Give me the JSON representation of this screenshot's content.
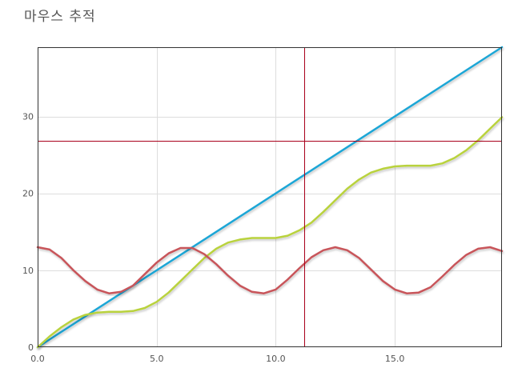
{
  "chart_data": {
    "type": "line",
    "title": "마우스 추적",
    "xlabel": "",
    "ylabel": "",
    "xlim": [
      0,
      19.5
    ],
    "ylim": [
      0,
      39
    ],
    "x_ticks": [
      "0.0",
      "5.0",
      "10.0",
      "15.0"
    ],
    "y_ticks": [
      "0",
      "10",
      "20",
      "30"
    ],
    "grid": true,
    "legend": "none",
    "crosshair": {
      "x": 11.2,
      "y": 26.8
    },
    "series": [
      {
        "color": "#1ca6d6",
        "x": [
          0,
          19.5
        ],
        "y": [
          0,
          39
        ]
      },
      {
        "color": "#b9d23e",
        "x": [
          0,
          0.5,
          1,
          1.5,
          2,
          2.5,
          3,
          3.5,
          4,
          4.5,
          5,
          5.5,
          6,
          6.5,
          7,
          7.5,
          8,
          8.5,
          9,
          9.5,
          10,
          10.5,
          11,
          11.5,
          12,
          12.5,
          13,
          13.5,
          14,
          14.5,
          15,
          15.5,
          16,
          16.5,
          17,
          17.5,
          18,
          18.5,
          19,
          19.5
        ],
        "y": [
          0,
          1.4,
          2.6,
          3.6,
          4.2,
          4.5,
          4.6,
          4.6,
          4.7,
          5.1,
          5.9,
          7.1,
          8.6,
          10.1,
          11.6,
          12.8,
          13.6,
          14.0,
          14.2,
          14.2,
          14.2,
          14.5,
          15.2,
          16.2,
          17.6,
          19.1,
          20.6,
          21.8,
          22.7,
          23.2,
          23.5,
          23.6,
          23.6,
          23.6,
          23.9,
          24.6,
          25.6,
          26.9,
          28.4,
          29.9
        ]
      },
      {
        "color": "#c8545a",
        "x": [
          0,
          0.5,
          1,
          1.5,
          2,
          2.5,
          3,
          3.5,
          4,
          4.5,
          5,
          5.5,
          6,
          6.5,
          7,
          7.5,
          8,
          8.5,
          9,
          9.5,
          10,
          10.5,
          11,
          11.5,
          12,
          12.5,
          13,
          13.5,
          14,
          14.5,
          15,
          15.5,
          16,
          16.5,
          17,
          17.5,
          18,
          18.5,
          19,
          19.5
        ],
        "y": [
          13.0,
          12.7,
          11.6,
          10.0,
          8.6,
          7.5,
          7.0,
          7.2,
          8.0,
          9.5,
          11.0,
          12.2,
          12.9,
          12.9,
          12.1,
          10.8,
          9.3,
          8.0,
          7.2,
          7.0,
          7.5,
          8.8,
          10.3,
          11.7,
          12.6,
          13.0,
          12.6,
          11.6,
          10.1,
          8.6,
          7.5,
          7.0,
          7.1,
          7.8,
          9.2,
          10.7,
          12.0,
          12.8,
          13.0,
          12.5
        ]
      }
    ]
  }
}
